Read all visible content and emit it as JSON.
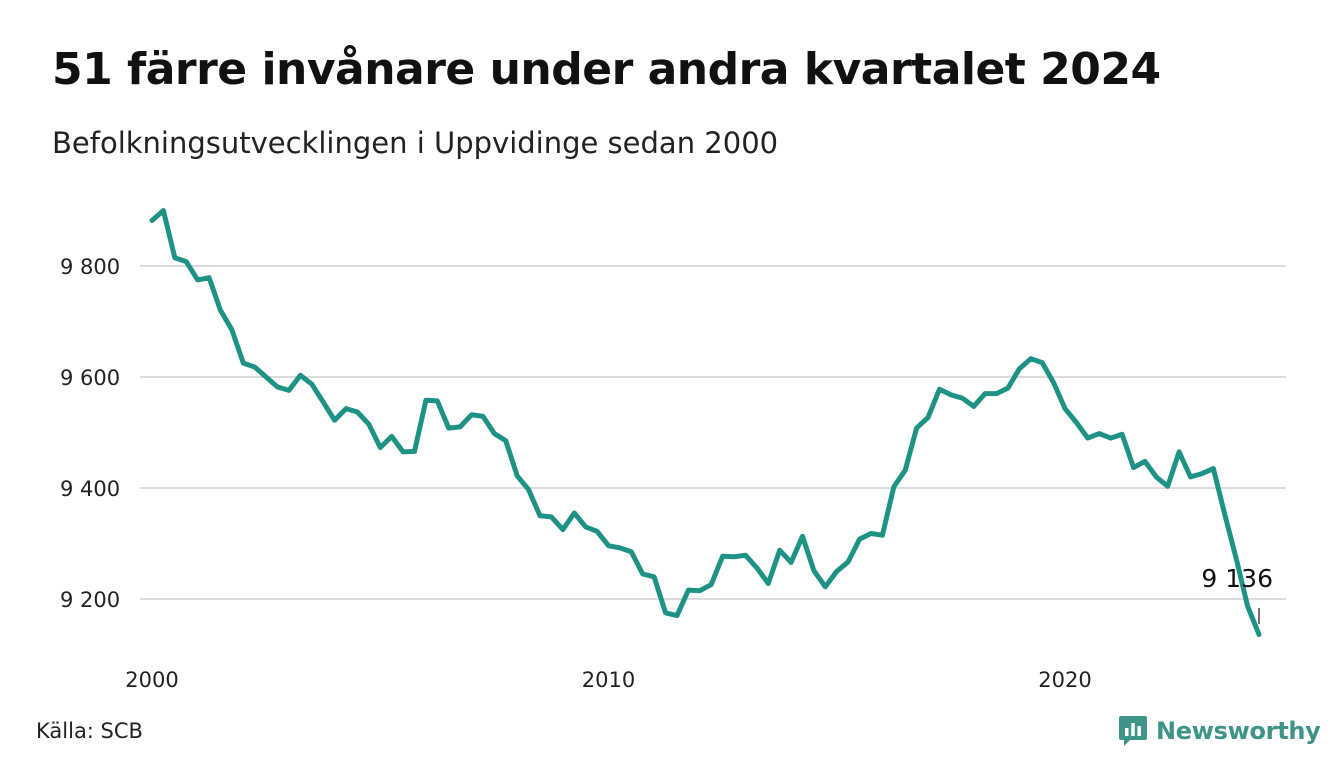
{
  "title": "51 färre invånare under andra kvartalet 2024",
  "subtitle": "Befolkningsutvecklingen i Uppvidinge sedan 2000",
  "source": "Källa: SCB",
  "brand": {
    "name": "Newsworthy",
    "color": "#3f9489",
    "icon": "newsworthy-logo-icon"
  },
  "chart_data": {
    "type": "line",
    "title": "51 färre invånare under andra kvartalet 2024",
    "subtitle": "Befolkningsutvecklingen i Uppvidinge sedan 2000",
    "xlabel": "",
    "ylabel": "",
    "xlim": [
      2000.0,
      2025.0
    ],
    "ylim": [
      9130,
      9910
    ],
    "x_ticks": [
      2000,
      2010,
      2020
    ],
    "x_tick_labels": [
      "2000",
      "2010",
      "2020"
    ],
    "y_ticks": [
      9200,
      9400,
      9600,
      9800
    ],
    "y_tick_labels": [
      "9 200",
      "9 400",
      "9 600",
      "9 800"
    ],
    "grid": "horizontal",
    "line_color": "#1f9286",
    "end_label": "9 136",
    "series": [
      {
        "x": [
          2000.0,
          2000.25,
          2000.5,
          2000.75,
          2001.0,
          2001.25,
          2001.5,
          2001.75,
          2002.0,
          2002.25,
          2002.5,
          2002.75,
          2003.0,
          2003.25,
          2003.5,
          2003.75,
          2004.0,
          2004.25,
          2004.5,
          2004.75,
          2005.0,
          2005.25,
          2005.5,
          2005.75,
          2006.0,
          2006.25,
          2006.5,
          2006.75,
          2007.0,
          2007.25,
          2007.5,
          2007.75,
          2008.0,
          2008.25,
          2008.5,
          2008.75,
          2009.0,
          2009.25,
          2009.5,
          2009.75,
          2010.0,
          2010.25,
          2010.5,
          2010.75,
          2011.0,
          2011.25,
          2011.5,
          2011.75,
          2012.0,
          2012.25,
          2012.5,
          2012.75,
          2013.0,
          2013.25,
          2013.5,
          2013.75,
          2014.0,
          2014.25,
          2014.5,
          2014.75,
          2015.0,
          2015.25,
          2015.5,
          2015.75,
          2016.0,
          2016.25,
          2016.5,
          2016.75,
          2017.0,
          2017.25,
          2017.5,
          2017.75,
          2018.0,
          2018.25,
          2018.5,
          2018.75,
          2019.0,
          2019.25,
          2019.5,
          2019.75,
          2020.0,
          2020.25,
          2020.5,
          2020.75,
          2021.0,
          2021.25,
          2021.5,
          2021.75,
          2022.0,
          2022.25,
          2022.5,
          2022.75,
          2023.0,
          2023.25,
          2023.5,
          2023.75,
          2024.0,
          2024.25
        ],
        "y": [
          9882,
          9900,
          9815,
          9808,
          9775,
          9779,
          9720,
          9685,
          9625,
          9618,
          9600,
          9582,
          9576,
          9603,
          9587,
          9555,
          9522,
          9543,
          9537,
          9515,
          9473,
          9493,
          9465,
          9466,
          9558,
          9557,
          9508,
          9510,
          9532,
          9529,
          9498,
          9485,
          9422,
          9397,
          9350,
          9348,
          9325,
          9355,
          9330,
          9322,
          9296,
          9292,
          9285,
          9245,
          9240,
          9175,
          9170,
          9216,
          9215,
          9226,
          9277,
          9276,
          9279,
          9256,
          9228,
          9288,
          9266,
          9313,
          9251,
          9222,
          9250,
          9267,
          9308,
          9318,
          9315,
          9402,
          9432,
          9508,
          9527,
          9578,
          9568,
          9562,
          9547,
          9570,
          9570,
          9580,
          9615,
          9633,
          9626,
          9590,
          9543,
          9518,
          9490,
          9498,
          9490,
          9497,
          9437,
          9448,
          9420,
          9403,
          9465,
          9420,
          9426,
          9435,
          9352,
          9273,
          9187,
          9136
        ]
      }
    ]
  }
}
